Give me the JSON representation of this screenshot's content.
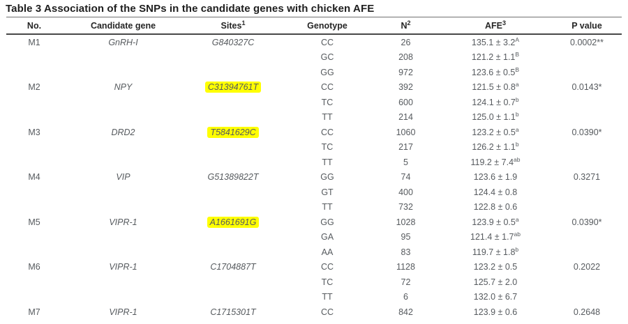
{
  "title": "Table 3 Association of the SNPs in the candidate genes with chicken AFE",
  "highlight_color": "#ffff00",
  "table": {
    "columns": [
      {
        "label": "No.",
        "sup": ""
      },
      {
        "label": "Candidate gene",
        "sup": ""
      },
      {
        "label": "Sites",
        "sup": "1"
      },
      {
        "label": "Genotype",
        "sup": ""
      },
      {
        "label": "N",
        "sup": "2"
      },
      {
        "label": "AFE",
        "sup": "3"
      },
      {
        "label": "P value",
        "sup": ""
      }
    ],
    "rows": [
      {
        "no": "M1",
        "gene": "GnRH-I",
        "site": "G840327C",
        "highlight": false,
        "genotype": "CC",
        "n": "26",
        "afe": "135.1 ± 3.2",
        "afe_sup": "A",
        "p": "0.0002**"
      },
      {
        "no": "",
        "gene": "",
        "site": "",
        "highlight": false,
        "genotype": "GC",
        "n": "208",
        "afe": "121.2 ± 1.1",
        "afe_sup": "B",
        "p": ""
      },
      {
        "no": "",
        "gene": "",
        "site": "",
        "highlight": false,
        "genotype": "GG",
        "n": "972",
        "afe": "123.6 ± 0.5",
        "afe_sup": "B",
        "p": ""
      },
      {
        "no": "M2",
        "gene": "NPY",
        "site": "C31394761T",
        "highlight": true,
        "genotype": "CC",
        "n": "392",
        "afe": "121.5 ± 0.8",
        "afe_sup": "a",
        "p": "0.0143*"
      },
      {
        "no": "",
        "gene": "",
        "site": "",
        "highlight": false,
        "genotype": "TC",
        "n": "600",
        "afe": "124.1 ± 0.7",
        "afe_sup": "b",
        "p": ""
      },
      {
        "no": "",
        "gene": "",
        "site": "",
        "highlight": false,
        "genotype": "TT",
        "n": "214",
        "afe": "125.0 ± 1.1",
        "afe_sup": "b",
        "p": ""
      },
      {
        "no": "M3",
        "gene": "DRD2",
        "site": "T5841629C",
        "highlight": true,
        "genotype": "CC",
        "n": "1060",
        "afe": "123.2 ± 0.5",
        "afe_sup": "a",
        "p": "0.0390*"
      },
      {
        "no": "",
        "gene": "",
        "site": "",
        "highlight": false,
        "genotype": "TC",
        "n": "217",
        "afe": "126.2 ± 1.1",
        "afe_sup": "b",
        "p": ""
      },
      {
        "no": "",
        "gene": "",
        "site": "",
        "highlight": false,
        "genotype": "TT",
        "n": "5",
        "afe": "119.2 ± 7.4",
        "afe_sup": "ab",
        "p": ""
      },
      {
        "no": "M4",
        "gene": "VIP",
        "site": "G51389822T",
        "highlight": false,
        "genotype": "GG",
        "n": "74",
        "afe": "123.6 ± 1.9",
        "afe_sup": "",
        "p": "0.3271"
      },
      {
        "no": "",
        "gene": "",
        "site": "",
        "highlight": false,
        "genotype": "GT",
        "n": "400",
        "afe": "124.4 ± 0.8",
        "afe_sup": "",
        "p": ""
      },
      {
        "no": "",
        "gene": "",
        "site": "",
        "highlight": false,
        "genotype": "TT",
        "n": "732",
        "afe": "122.8 ± 0.6",
        "afe_sup": "",
        "p": ""
      },
      {
        "no": "M5",
        "gene": "VIPR-1",
        "site": "A1661691G",
        "highlight": true,
        "genotype": "GG",
        "n": "1028",
        "afe": "123.9 ± 0.5",
        "afe_sup": "a",
        "p": "0.0390*"
      },
      {
        "no": "",
        "gene": "",
        "site": "",
        "highlight": false,
        "genotype": "GA",
        "n": "95",
        "afe": "121.4 ± 1.7",
        "afe_sup": "ab",
        "p": ""
      },
      {
        "no": "",
        "gene": "",
        "site": "",
        "highlight": false,
        "genotype": "AA",
        "n": "83",
        "afe": "119.7 ± 1.8",
        "afe_sup": "b",
        "p": ""
      },
      {
        "no": "M6",
        "gene": "VIPR-1",
        "site": "C1704887T",
        "highlight": false,
        "genotype": "CC",
        "n": "1128",
        "afe": "123.2 ± 0.5",
        "afe_sup": "",
        "p": "0.2022"
      },
      {
        "no": "",
        "gene": "",
        "site": "",
        "highlight": false,
        "genotype": "TC",
        "n": "72",
        "afe": "125.7 ± 2.0",
        "afe_sup": "",
        "p": ""
      },
      {
        "no": "",
        "gene": "",
        "site": "",
        "highlight": false,
        "genotype": "TT",
        "n": "6",
        "afe": "132.0 ± 6.7",
        "afe_sup": "",
        "p": ""
      },
      {
        "no": "M7",
        "gene": "VIPR-1",
        "site": "C1715301T",
        "highlight": false,
        "genotype": "CC",
        "n": "842",
        "afe": "123.9 ± 0.6",
        "afe_sup": "",
        "p": "0.2648"
      }
    ]
  }
}
